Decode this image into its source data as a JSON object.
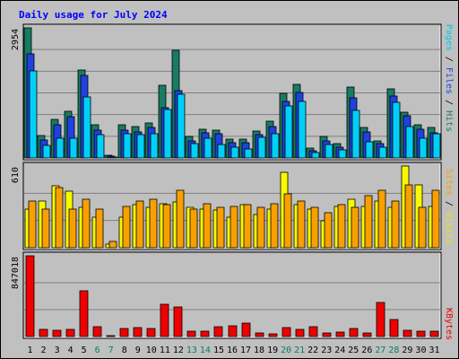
{
  "chart_data": {
    "type": "bar",
    "title": "Daily usage for July 2024",
    "categories": [
      "1",
      "2",
      "3",
      "4",
      "5",
      "6",
      "7",
      "8",
      "9",
      "10",
      "11",
      "12",
      "13",
      "14",
      "15",
      "16",
      "17",
      "18",
      "19",
      "20",
      "21",
      "22",
      "23",
      "24",
      "25",
      "26",
      "27",
      "28",
      "29",
      "30",
      "31"
    ],
    "weekend_days": [
      "6",
      "7",
      "13",
      "14",
      "20",
      "21",
      "27",
      "28"
    ],
    "panels": [
      {
        "id": "hits-files-pages",
        "max_label": "2954",
        "ylim": [
          0,
          2954
        ],
        "series": [
          {
            "name": "Hits",
            "color": "#187b63",
            "values": [
              2954,
              500,
              880,
              1060,
              1990,
              760,
              60,
              750,
              720,
              800,
              1650,
              2450,
              490,
              660,
              640,
              420,
              430,
              620,
              840,
              1460,
              1670,
              230,
              490,
              330,
              1600,
              690,
              390,
              1560,
              1040,
              760,
              690
            ]
          },
          {
            "name": "Files",
            "color": "#2040e0",
            "values": [
              2360,
              400,
              760,
              940,
              1880,
              640,
              50,
              640,
              600,
              700,
              1150,
              1520,
              390,
              580,
              560,
              350,
              340,
              520,
              720,
              1280,
              1480,
              170,
              390,
              250,
              1360,
              590,
              320,
              1410,
              960,
              650,
              570
            ]
          },
          {
            "name": "Pages",
            "color": "#00d0f8",
            "values": [
              1970,
              280,
              440,
              450,
              1390,
              530,
              30,
              540,
              520,
              540,
              1110,
              1450,
              320,
              450,
              300,
              240,
              210,
              460,
              540,
              1190,
              1290,
              120,
              300,
              190,
              1080,
              360,
              240,
              1270,
              720,
              440,
              560
            ]
          }
        ]
      },
      {
        "id": "visits-sites",
        "max_label": "610",
        "ylim": [
          0,
          610
        ],
        "series": [
          {
            "name": "Visits",
            "color": "#f8f800",
            "values": [
              290,
              350,
              460,
              420,
              300,
              230,
              30,
              230,
              320,
              300,
              330,
              340,
              300,
              290,
              280,
              230,
              320,
              250,
              290,
              560,
              320,
              290,
              200,
              310,
              360,
              310,
              350,
              300,
              610,
              470,
              310
            ]
          },
          {
            "name": "Sites",
            "color": "#f8a000",
            "values": [
              350,
              290,
              450,
              290,
              360,
              290,
              50,
              310,
              350,
              360,
              320,
              430,
              290,
              330,
              300,
              310,
              320,
              300,
              330,
              400,
              350,
              300,
              260,
              320,
              300,
              390,
              430,
              350,
              470,
              300,
              430
            ]
          }
        ]
      },
      {
        "id": "kbytes",
        "max_label": "847018",
        "ylim": [
          0,
          847018
        ],
        "series": [
          {
            "name": "KBytes",
            "color": "#f00000",
            "values": [
              847018,
              75000,
              70000,
              75000,
              480000,
              100000,
              8000,
              85000,
              90000,
              80000,
              340000,
              310000,
              60000,
              60000,
              100000,
              110000,
              140000,
              40000,
              30000,
              90000,
              75000,
              100000,
              35000,
              50000,
              80000,
              35000,
              360000,
              180000,
              70000,
              60000,
              55000
            ]
          }
        ]
      }
    ],
    "right_labels": {
      "top": [
        {
          "text": "Pages",
          "color": "#00c8f0"
        },
        {
          "text": " / ",
          "color": "#000000"
        },
        {
          "text": "Files",
          "color": "#2040e0"
        },
        {
          "text": " / ",
          "color": "#000000"
        },
        {
          "text": "Hits",
          "color": "#187b63"
        }
      ],
      "middle": [
        {
          "text": "Sites",
          "color": "#f8a000"
        },
        {
          "text": " / ",
          "color": "#000000"
        },
        {
          "text": "Visits",
          "color": "#e8e800"
        }
      ],
      "bottom": [
        {
          "text": "KBytes",
          "color": "#f00000"
        }
      ]
    },
    "colors": {
      "background": "#c0c0c0",
      "panel_background": "#c0c0c0",
      "title": "#0000ff",
      "axis_text": "#000000",
      "weekend_text": "#00805f",
      "grid": "#808080"
    },
    "grid": true
  }
}
